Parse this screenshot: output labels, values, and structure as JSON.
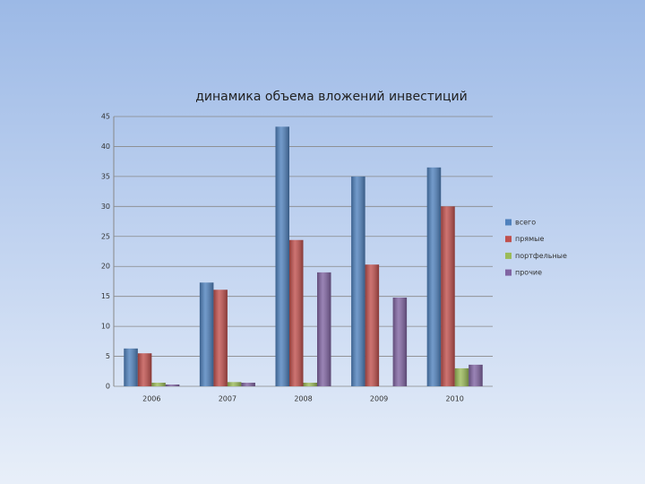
{
  "chart_data": {
    "type": "bar",
    "title": "динамика объема вложений инвестиций",
    "categories": [
      "2006",
      "2007",
      "2008",
      "2009",
      "2010"
    ],
    "series": [
      {
        "name": "всего",
        "color": "#4f81bd",
        "values": [
          6.3,
          17.3,
          43.3,
          35.0,
          36.5
        ]
      },
      {
        "name": "прямые",
        "color": "#c0504d",
        "values": [
          5.5,
          16.1,
          24.4,
          20.3,
          30.0
        ]
      },
      {
        "name": "портфельные",
        "color": "#9bbb59",
        "values": [
          0.6,
          0.7,
          0.6,
          0,
          3.0
        ]
      },
      {
        "name": "прочие",
        "color": "#8064a2",
        "values": [
          0.3,
          0.6,
          19.0,
          14.8,
          3.6
        ]
      }
    ],
    "ylim": [
      0,
      45
    ],
    "yticks": [
      0,
      5,
      10,
      15,
      20,
      25,
      30,
      35,
      40,
      45
    ],
    "grid": true,
    "legend": "right"
  }
}
